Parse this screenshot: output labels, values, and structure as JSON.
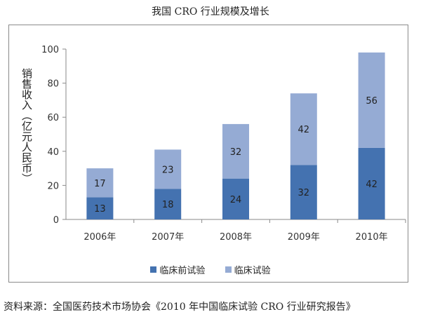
{
  "title": "我国 CRO 行业规模及增长",
  "source": "资料来源：全国医药技术市场协会《2010 年中国临床试验 CRO 行业研究报告》",
  "chart_data": {
    "type": "bar",
    "stacked": true,
    "title": "我国 CRO 行业规模及增长",
    "ylabel": "销售收入（亿元人民币）",
    "xlabel": "",
    "categories": [
      "2006年",
      "2007年",
      "2008年",
      "2009年",
      "2010年"
    ],
    "ylim": [
      0,
      100
    ],
    "yticks": [
      "0",
      "20",
      "40",
      "60",
      "80",
      "100"
    ],
    "grid": false,
    "legend_position": "bottom",
    "series": [
      {
        "name": "临床前试验",
        "values": [
          13,
          18,
          24,
          32,
          42
        ],
        "labels": [
          "13",
          "18",
          "24",
          "32",
          "42"
        ],
        "color": "#4472b0"
      },
      {
        "name": "临床试验",
        "values": [
          17,
          23,
          32,
          42,
          56
        ],
        "labels": [
          "17",
          "23",
          "32",
          "42",
          "56"
        ],
        "color": "#95abd4"
      }
    ]
  }
}
